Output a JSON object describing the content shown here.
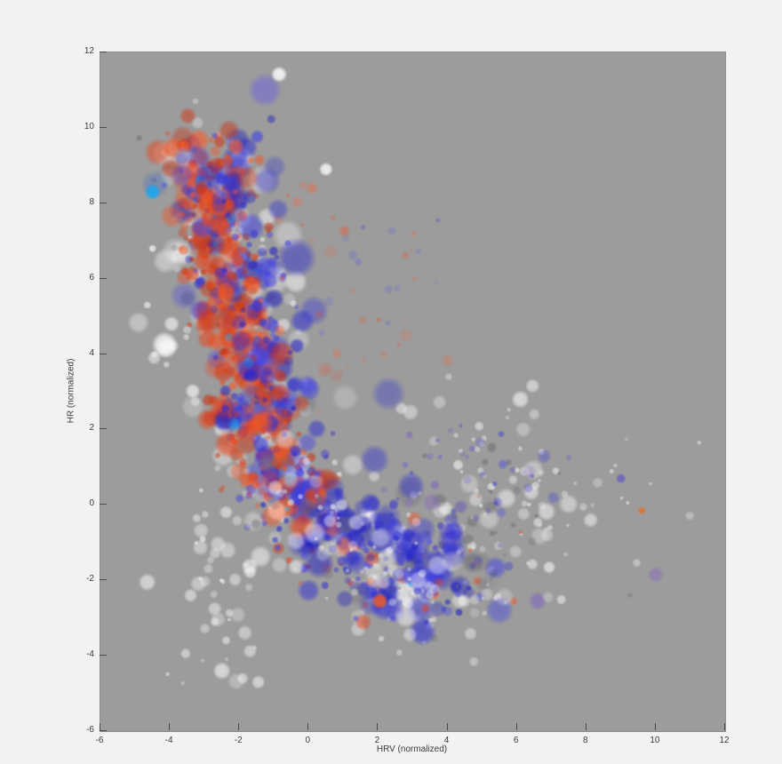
{
  "figure": {
    "page_bg": "#f2f2f1",
    "plot_bg": "#9c9c9c",
    "axis_color": "#4a4a4a",
    "label_color": "#3a3a3a"
  },
  "chart_data": {
    "type": "scatter",
    "subtype": "bubble-cloud",
    "title": "",
    "xlabel": "HRV (normalized)",
    "ylabel": "HR (normalized)",
    "xlim": [
      -6,
      12
    ],
    "ylim": [
      -6,
      12
    ],
    "xticks": [
      -6,
      -4,
      -2,
      0,
      2,
      4,
      6,
      8,
      10,
      12
    ],
    "yticks": [
      -6,
      -4,
      -2,
      0,
      2,
      4,
      6,
      8,
      10,
      12
    ],
    "grid": false,
    "legend": null,
    "seed": 1337,
    "palette": {
      "red": "#e8431a",
      "blue": "#2b2bd8",
      "cyan": "#18a8f0",
      "purple": "#7a5fc0",
      "white": "#ffffff",
      "dark_gray": "#55555c"
    },
    "spine": [
      [
        -2.95,
        9.35
      ],
      [
        -2.95,
        8.5
      ],
      [
        -2.45,
        7.2
      ],
      [
        -2.05,
        5.6
      ],
      [
        -1.85,
        4.1
      ],
      [
        -1.6,
        2.6
      ],
      [
        -1.15,
        1.3
      ],
      [
        -0.5,
        0.2
      ],
      [
        0.45,
        -0.7
      ],
      [
        1.6,
        -1.35
      ],
      [
        2.9,
        -1.75
      ],
      [
        4.3,
        -1.75
      ]
    ],
    "series": [
      {
        "name": "background-white",
        "kind": "spine",
        "phase": 0,
        "count": 230,
        "t0": -0.03,
        "t1": 1.04,
        "jx": 1.0,
        "jy": 0.85,
        "bx": 0.15,
        "by": -0.05,
        "rmin": 3,
        "rmax": 16,
        "rpow": 2.0,
        "a0": 0.26,
        "av": 0.3,
        "colors": [
          "#ffffff",
          "#f4f4f6",
          "#e9e9ee",
          "#63636a",
          "#8e8e94"
        ],
        "cw": [
          0.42,
          0.2,
          0.15,
          0.12,
          0.11
        ]
      },
      {
        "name": "white-left-fringe",
        "kind": "blob",
        "phase": 0,
        "x": -2.4,
        "y": -1.0,
        "sx": 0.45,
        "sy": 1.2,
        "n": 30,
        "rmin": 2,
        "rmax": 10,
        "a0": 0.3,
        "av": 0.3,
        "colors": [
          "#ffffff",
          "#f2f2f5"
        ],
        "cw": [
          0.6,
          0.4
        ]
      },
      {
        "name": "white-right-halo",
        "kind": "blob",
        "phase": 0,
        "x": 5.6,
        "y": 0.1,
        "sx": 1.15,
        "sy": 0.95,
        "n": 55,
        "rmin": 2,
        "rmax": 11,
        "a0": 0.3,
        "av": 0.3,
        "colors": [
          "#ffffff",
          "#ededf0",
          "#6a6a72"
        ],
        "cw": [
          0.6,
          0.25,
          0.15
        ]
      },
      {
        "name": "white-far-right",
        "kind": "blob",
        "phase": 0,
        "x": 7.9,
        "y": -0.2,
        "sx": 1.5,
        "sy": 1.2,
        "n": 24,
        "rmin": 2,
        "rmax": 8,
        "a0": 0.3,
        "av": 0.25,
        "colors": [
          "#ffffff",
          "#e9e9ee",
          "#77777e"
        ],
        "cw": [
          0.6,
          0.25,
          0.15
        ]
      },
      {
        "name": "white-upper-right",
        "kind": "blob",
        "phase": 0,
        "x": 4.7,
        "y": 2.3,
        "sx": 0.9,
        "sy": 0.8,
        "n": 16,
        "rmin": 2,
        "rmax": 9,
        "a0": 0.3,
        "av": 0.25,
        "colors": [
          "#ffffff",
          "#ededf2"
        ],
        "cw": [
          0.7,
          0.3
        ]
      },
      {
        "name": "white-left-group",
        "kind": "blob",
        "phase": 0,
        "x": -3.9,
        "y": 4.3,
        "sx": 0.5,
        "sy": 0.6,
        "n": 8,
        "rmin": 3,
        "rmax": 12,
        "a0": 0.35,
        "av": 0.3,
        "colors": [
          "#ffffff"
        ],
        "cw": [
          1
        ]
      },
      {
        "name": "white-bottom-left",
        "kind": "blob",
        "phase": 0,
        "x": -2.5,
        "y": -3.9,
        "sx": 1.0,
        "sy": 0.55,
        "n": 10,
        "rmin": 2,
        "rmax": 9,
        "a0": 0.3,
        "av": 0.25,
        "colors": [
          "#ffffff",
          "#f0f0f4"
        ],
        "cw": [
          0.7,
          0.3
        ]
      },
      {
        "name": "white-bottom-mid",
        "kind": "blob",
        "phase": 0,
        "x": 2.8,
        "y": -3.1,
        "sx": 1.5,
        "sy": 0.6,
        "n": 16,
        "rmin": 2,
        "rmax": 9,
        "a0": 0.28,
        "av": 0.25,
        "colors": [
          "#ffffff",
          "#ececf0",
          "#75757c"
        ],
        "cw": [
          0.6,
          0.25,
          0.15
        ]
      },
      {
        "name": "red-band",
        "kind": "spine",
        "phase": 1,
        "count": 390,
        "t0": 0.02,
        "t1": 0.72,
        "jx": 0.62,
        "jy": 0.62,
        "bx": -0.05,
        "by": 0.05,
        "rmin": 3,
        "rmax": 14,
        "rpow": 1.9,
        "a0": 0.34,
        "av": 0.34,
        "colors": [
          "#e8431a",
          "#f05522",
          "#d4340f",
          "#ff5c28",
          "#c63a18"
        ],
        "cw": [
          0.3,
          0.25,
          0.2,
          0.1,
          0.15
        ]
      },
      {
        "name": "blue-band",
        "kind": "spine",
        "phase": 1,
        "count": 430,
        "t0": 0.0,
        "t1": 1.0,
        "tpow": 0.8,
        "jx": 0.75,
        "jy": 0.68,
        "bx": 0.3,
        "by": -0.1,
        "rmin": 3,
        "rmax": 15,
        "rpow": 1.9,
        "a0": 0.32,
        "av": 0.32,
        "colors": [
          "#2b2bd8",
          "#2222c2",
          "#4040e8",
          "#3333cf",
          "#5050dd"
        ],
        "cw": [
          0.3,
          0.25,
          0.2,
          0.15,
          0.1
        ]
      },
      {
        "name": "cyan-sparkles",
        "kind": "spine",
        "phase": 1,
        "count": 20,
        "t0": 0.05,
        "t1": 0.95,
        "jx": 0.5,
        "jy": 0.5,
        "bx": 0.1,
        "by": 0,
        "rmin": 2,
        "rmax": 7,
        "rpow": 1.5,
        "a0": 0.4,
        "av": 0.3,
        "colors": [
          "#2196e8",
          "#18a8f0",
          "#30b8f5"
        ],
        "cw": [
          0.4,
          0.4,
          0.2
        ]
      },
      {
        "name": "purple-right",
        "kind": "blob",
        "phase": 1,
        "x": 3.6,
        "y": 0.1,
        "sx": 1.6,
        "sy": 1.2,
        "n": 26,
        "rmin": 3,
        "rmax": 10,
        "a0": 0.3,
        "av": 0.3,
        "colors": [
          "#7a5fc0",
          "#8a6fb8",
          "#6a58b8"
        ],
        "cw": [
          0.4,
          0.3,
          0.3
        ]
      },
      {
        "name": "red-fringe-right",
        "kind": "blob",
        "phase": 1,
        "x": 2.1,
        "y": 4.6,
        "sx": 1.1,
        "sy": 1.3,
        "n": 20,
        "rmin": 2,
        "rmax": 8,
        "a0": 0.16,
        "av": 0.2,
        "colors": [
          "#e8502a",
          "#f06a40"
        ],
        "cw": [
          0.5,
          0.5
        ]
      },
      {
        "name": "red-fringe-top",
        "kind": "blob",
        "phase": 1,
        "x": 0.2,
        "y": 8.0,
        "sx": 0.8,
        "sy": 0.7,
        "n": 10,
        "rmin": 2,
        "rmax": 7,
        "a0": 0.2,
        "av": 0.25,
        "colors": [
          "#ee5526",
          "#f06a40"
        ],
        "cw": [
          0.6,
          0.4
        ]
      },
      {
        "name": "red-fringe-bottom",
        "kind": "blob",
        "phase": 1,
        "x": 2.7,
        "y": -1.6,
        "sx": 1.5,
        "sy": 0.7,
        "n": 28,
        "rmin": 2,
        "rmax": 9,
        "a0": 0.3,
        "av": 0.3,
        "colors": [
          "#e8431a",
          "#f05522"
        ],
        "cw": [
          0.5,
          0.5
        ]
      },
      {
        "name": "blue-fringe-right",
        "kind": "blob",
        "phase": 1,
        "x": 5.0,
        "y": 0.2,
        "sx": 1.25,
        "sy": 1.0,
        "n": 26,
        "rmin": 2,
        "rmax": 8,
        "a0": 0.28,
        "av": 0.28,
        "colors": [
          "#3c3cd8",
          "#5555e0",
          "#6a62cc"
        ],
        "cw": [
          0.4,
          0.3,
          0.3
        ]
      },
      {
        "name": "blue-fringe-upper",
        "kind": "blob",
        "phase": 1,
        "x": 1.7,
        "y": 6.2,
        "sx": 1.1,
        "sy": 1.0,
        "n": 13,
        "rmin": 2,
        "rmax": 7,
        "a0": 0.18,
        "av": 0.2,
        "colors": [
          "#4646d8",
          "#6060dd"
        ],
        "cw": [
          0.5,
          0.5
        ]
      },
      {
        "name": "gray-dark-right",
        "kind": "blob",
        "phase": 1,
        "x": 4.3,
        "y": -0.4,
        "sx": 1.2,
        "sy": 0.9,
        "n": 14,
        "rmin": 3,
        "rmax": 10,
        "a0": 0.2,
        "av": 0.2,
        "colors": [
          "#55555c",
          "#3f3f46"
        ],
        "cw": [
          0.6,
          0.4
        ]
      },
      {
        "name": "foreground-white",
        "kind": "spine",
        "phase": 2,
        "count": 95,
        "t0": 0.55,
        "t1": 1.05,
        "jx": 0.75,
        "jy": 0.55,
        "bx": 0.45,
        "by": -0.35,
        "rmin": 2,
        "rmax": 12,
        "rpow": 2.0,
        "a0": 0.26,
        "av": 0.28,
        "colors": [
          "#ffffff",
          "#f2f2f6",
          "#e6e6ec",
          "#6f6f76"
        ],
        "cw": [
          0.45,
          0.25,
          0.15,
          0.15
        ]
      }
    ],
    "big_bubbles": [
      [
        -2.85,
        8.7,
        16,
        "#2a2ac8",
        0.55
      ],
      [
        -2.0,
        8.95,
        13,
        "#3a3ad0",
        0.5
      ],
      [
        -1.2,
        8.6,
        14,
        "#4444cc",
        0.5
      ],
      [
        -0.35,
        6.55,
        20,
        "#2d2dd0",
        0.5
      ],
      [
        0.15,
        5.15,
        15,
        "#3a3ad8",
        0.45
      ],
      [
        2.3,
        2.95,
        17,
        "#3a3ace",
        0.4
      ],
      [
        1.9,
        1.2,
        15,
        "#2e2ed4",
        0.45
      ],
      [
        2.95,
        0.5,
        14,
        "#3434d0",
        0.5
      ],
      [
        1.15,
        -0.5,
        16,
        "#2828cc",
        0.5
      ],
      [
        0.3,
        -1.55,
        15,
        "#2222c8",
        0.55
      ],
      [
        3.3,
        -0.65,
        13,
        "#3a3ad4",
        0.45
      ],
      [
        -2.3,
        6.85,
        14,
        "#e04418",
        0.6
      ],
      [
        -2.6,
        7.9,
        12,
        "#e85020",
        0.55
      ],
      [
        -1.9,
        5.0,
        14,
        "#ef4f1d",
        0.6
      ],
      [
        -1.55,
        3.2,
        15,
        "#e8431a",
        0.6
      ],
      [
        -1.35,
        2.2,
        13,
        "#f05522",
        0.55
      ],
      [
        -0.6,
        1.5,
        14,
        "#e64418",
        0.5
      ],
      [
        -1.05,
        -0.3,
        12,
        "#ef5020",
        0.5
      ],
      [
        1.1,
        -1.1,
        12,
        "#e8481c",
        0.5
      ],
      [
        0.2,
        0.2,
        13,
        "#f05a28",
        0.45
      ]
    ],
    "outliers": [
      [
        -1.26,
        11.0,
        17,
        "#7b74c8",
        0.8
      ],
      [
        -0.85,
        11.42,
        8,
        "#ffffff",
        0.85
      ],
      [
        0.5,
        8.9,
        7,
        "#ffffff",
        0.8
      ],
      [
        -4.42,
        8.5,
        14,
        "#3b66cc",
        0.35
      ],
      [
        -4.5,
        8.3,
        8,
        "#18a8f0",
        0.9
      ],
      [
        -4.5,
        6.8,
        4,
        "#ffffff",
        0.7
      ],
      [
        -4.15,
        4.25,
        13,
        "#ffffff",
        0.8
      ],
      [
        -3.95,
        4.8,
        8,
        "#ffffff",
        0.6
      ],
      [
        -4.45,
        3.9,
        7,
        "#ffffff",
        0.5
      ],
      [
        -4.65,
        5.3,
        4,
        "#ffffff",
        0.6
      ],
      [
        -3.6,
        9.25,
        10,
        "#8888cc",
        0.5
      ],
      [
        -2.5,
        -4.4,
        9,
        "#ffffff",
        0.6
      ],
      [
        -1.9,
        -4.6,
        6,
        "#ffffff",
        0.5
      ],
      [
        -1.45,
        -4.7,
        7,
        "#ffffff",
        0.55
      ],
      [
        -4.65,
        -2.05,
        9,
        "#ffffff",
        0.55
      ],
      [
        -3.4,
        -2.4,
        7,
        "#ffffff",
        0.5
      ],
      [
        -2.7,
        -3.1,
        5,
        "#ffffff",
        0.45
      ],
      [
        2.05,
        -2.55,
        8,
        "#f55a1e",
        0.85
      ],
      [
        9.6,
        -0.15,
        4,
        "#e07028",
        0.85
      ],
      [
        10.0,
        -1.85,
        8,
        "#8a6fb8",
        0.6
      ],
      [
        9.0,
        0.7,
        5,
        "#5a52cc",
        0.7
      ],
      [
        6.1,
        2.8,
        9,
        "#ffffff",
        0.6
      ],
      [
        6.5,
        2.4,
        6,
        "#e8e8ee",
        0.5
      ],
      [
        5.0,
        -2.1,
        7,
        "#777780",
        0.4
      ],
      [
        6.9,
        -2.45,
        6,
        "#cfcfd4",
        0.5
      ]
    ]
  }
}
